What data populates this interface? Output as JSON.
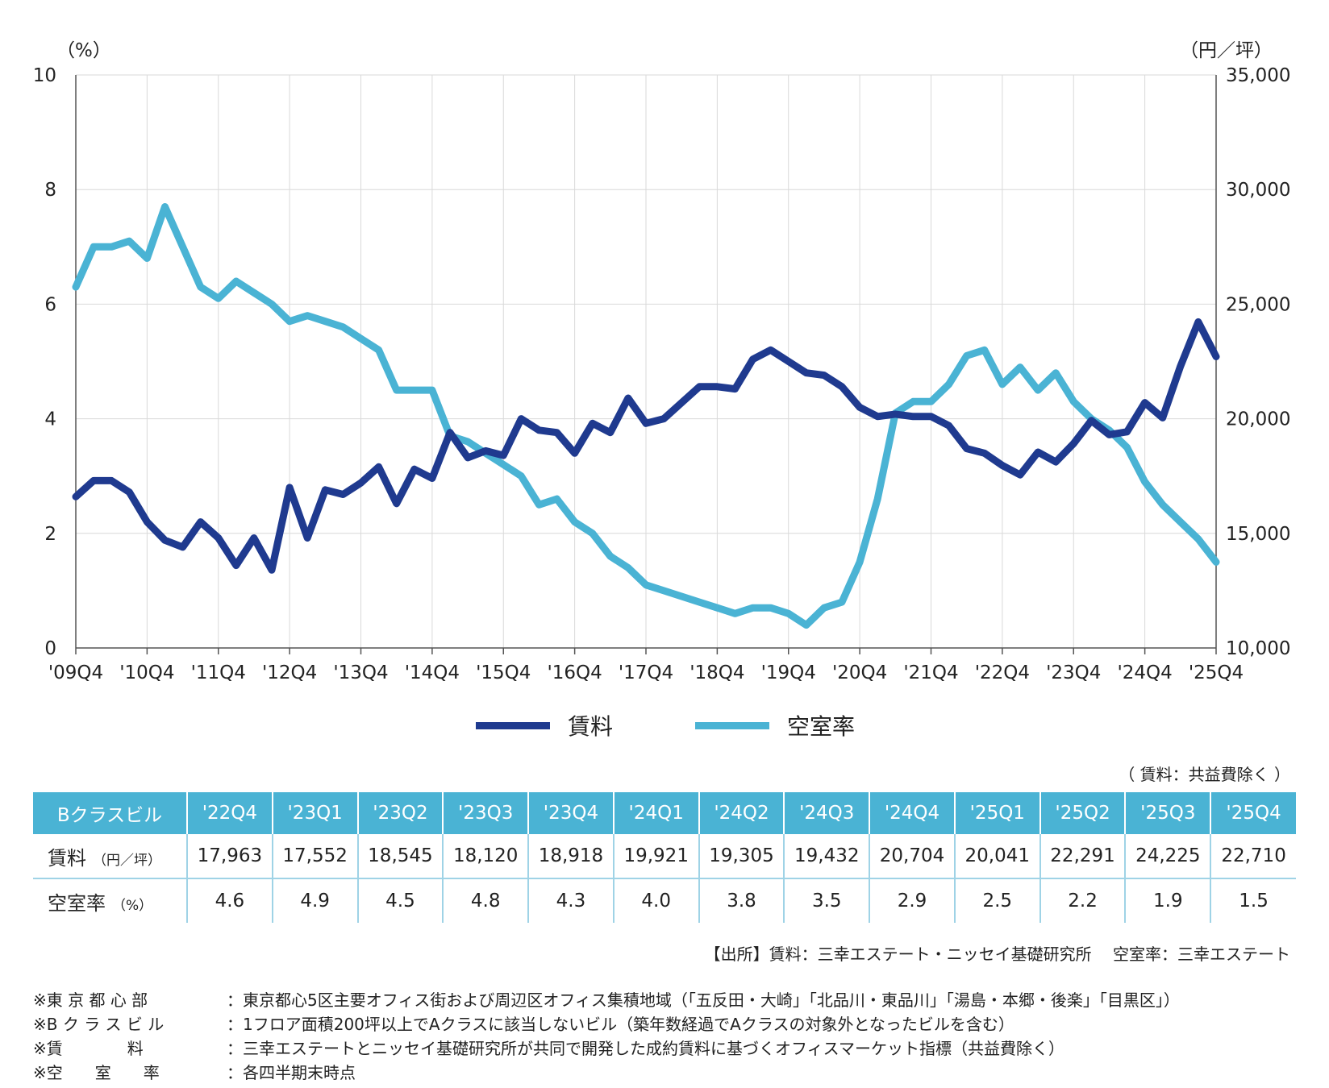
{
  "chart_data": {
    "type": "line",
    "y_left_unit": "（%）",
    "y_right_unit": "（円／坪）",
    "y_left_ticks": [
      "0",
      "2",
      "4",
      "6",
      "8",
      "10"
    ],
    "y_right_ticks": [
      "10,000",
      "15,000",
      "20,000",
      "25,000",
      "30,000",
      "35,000"
    ],
    "y_left_range": [
      0,
      10
    ],
    "y_right_range": [
      10000,
      35000
    ],
    "x_tick_labels": [
      "'09Q4",
      "'10Q4",
      "'11Q4",
      "'12Q4",
      "'13Q4",
      "'14Q4",
      "'15Q4",
      "'16Q4",
      "'17Q4",
      "'18Q4",
      "'19Q4",
      "'20Q4",
      "'21Q4",
      "'22Q4",
      "'23Q4",
      "'24Q4",
      "'25Q4"
    ],
    "grid": true,
    "legend_position": "bottom",
    "series": [
      {
        "name": "賃料",
        "axis": "right",
        "color": "#1f3a8f",
        "values": [
          16600,
          17300,
          17300,
          16800,
          15500,
          14700,
          14400,
          15500,
          14800,
          13600,
          14800,
          13400,
          17000,
          14800,
          16900,
          16700,
          17200,
          17900,
          16300,
          17800,
          17400,
          19400,
          18300,
          18600,
          18400,
          20000,
          19500,
          19400,
          18500,
          19800,
          19400,
          20900,
          19800,
          20000,
          20700,
          21400,
          21400,
          21300,
          22600,
          23000,
          22500,
          22000,
          21900,
          21400,
          20500,
          20100,
          20200,
          20100,
          20100,
          19700,
          18700,
          18500,
          17963,
          17552,
          18545,
          18120,
          18918,
          19921,
          19305,
          19432,
          20704,
          20041,
          22291,
          24225,
          22710
        ]
      },
      {
        "name": "空室率",
        "axis": "left",
        "color": "#4ab3d4",
        "values": [
          6.3,
          7.0,
          7.0,
          7.1,
          6.8,
          7.7,
          7.0,
          6.3,
          6.1,
          6.4,
          6.2,
          6.0,
          5.7,
          5.8,
          5.7,
          5.6,
          5.4,
          5.2,
          4.5,
          4.5,
          4.5,
          3.7,
          3.6,
          3.4,
          3.2,
          3.0,
          2.5,
          2.6,
          2.2,
          2.0,
          1.6,
          1.4,
          1.1,
          1.0,
          0.9,
          0.8,
          0.7,
          0.6,
          0.7,
          0.7,
          0.6,
          0.4,
          0.7,
          0.8,
          1.5,
          2.6,
          4.1,
          4.3,
          4.3,
          4.6,
          5.1,
          5.2,
          4.6,
          4.9,
          4.5,
          4.8,
          4.3,
          4.0,
          3.8,
          3.5,
          2.9,
          2.5,
          2.2,
          1.9,
          1.5
        ]
      }
    ]
  },
  "legend": {
    "rent_label": "賃料",
    "vacancy_label": "空室率"
  },
  "table": {
    "note": "（ 賃料：共益費除く ）",
    "header_label": "Bクラスビル",
    "quarters": [
      "'22Q4",
      "'23Q1",
      "'23Q2",
      "'23Q3",
      "'23Q4",
      "'24Q1",
      "'24Q2",
      "'24Q3",
      "'24Q4",
      "'25Q1",
      "'25Q2",
      "'25Q3",
      "'25Q4"
    ],
    "rent_label": "賃料",
    "rent_unit": "（円／坪）",
    "rent_values": [
      "17,963",
      "17,552",
      "18,545",
      "18,120",
      "18,918",
      "19,921",
      "19,305",
      "19,432",
      "20,704",
      "20,041",
      "22,291",
      "24,225",
      "22,710"
    ],
    "vacancy_label": "空室率",
    "vacancy_unit": "（%）",
    "vacancy_values": [
      "4.6",
      "4.9",
      "4.5",
      "4.8",
      "4.3",
      "4.0",
      "3.8",
      "3.5",
      "2.9",
      "2.5",
      "2.2",
      "1.9",
      "1.5"
    ]
  },
  "source": "【出所】賃料：三幸エステート・ニッセイ基礎研究所　 空室率：三幸エステート",
  "footnotes": [
    {
      "label": "※東 京 都 心 部",
      "text": "：東京都心5区主要オフィス街および周辺区オフィス集積地域（「五反田・大崎」「北品川・東品川」「湯島・本郷・後楽」「目黒区」）"
    },
    {
      "label": "※B ク ラ ス ビ ル",
      "text": "：1フロア面積200坪以上でAクラスに該当しないビル（築年数経過でAクラスの対象外となったビルを含む）"
    },
    {
      "label": "※賃　　　　料",
      "text": "：三幸エステートとニッセイ基礎研究所が共同で開発した成約賃料に基づくオフィスマーケット指標（共益費除く）"
    },
    {
      "label": "※空　　室　　率",
      "text": "：各四半期末時点"
    }
  ]
}
